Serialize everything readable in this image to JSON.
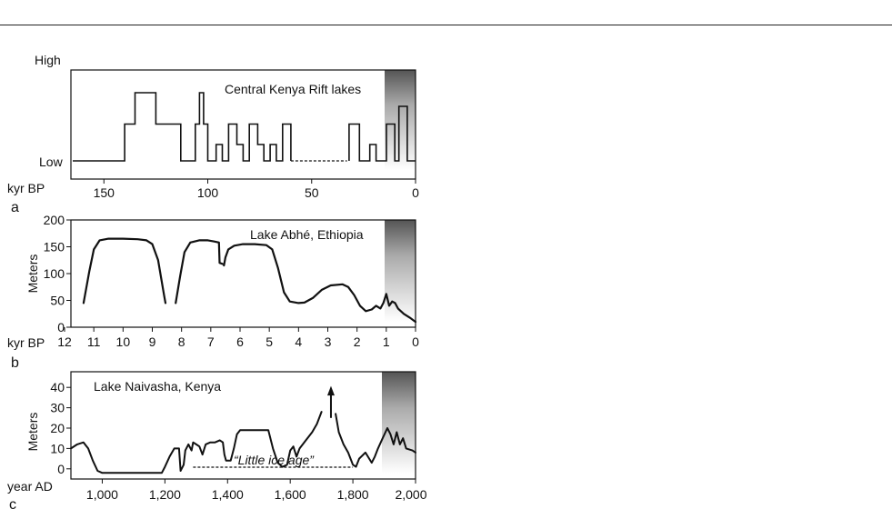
{
  "chart_data": [
    {
      "type": "line",
      "panel_letter": "a",
      "title": "Central Kenya Rift lakes",
      "xlabel": "kyr BP",
      "ylabel": "",
      "y_level_labels": [
        "High",
        "Low"
      ],
      "xlim": [
        165,
        0
      ],
      "ylim": [
        0,
        1
      ],
      "x_ticks": [
        150,
        100,
        50,
        0
      ],
      "grid": false,
      "series": [
        {
          "step": true,
          "points": [
            [
              165,
              0
            ],
            [
              140,
              0
            ],
            [
              140,
              0.54
            ],
            [
              135,
              0.54
            ],
            [
              135,
              1
            ],
            [
              125,
              1
            ],
            [
              125,
              0.54
            ],
            [
              113,
              0.54
            ],
            [
              113,
              0
            ],
            [
              106,
              0
            ],
            [
              106,
              0.54
            ],
            [
              104,
              0.54
            ],
            [
              104,
              1
            ],
            [
              102,
              1
            ],
            [
              102,
              0.54
            ],
            [
              100,
              0.54
            ],
            [
              100,
              0
            ],
            [
              96,
              0
            ],
            [
              96,
              0.24
            ],
            [
              93,
              0.24
            ],
            [
              93,
              0
            ],
            [
              90,
              0
            ],
            [
              90,
              0.54
            ],
            [
              86,
              0.54
            ],
            [
              86,
              0.24
            ],
            [
              83,
              0.24
            ],
            [
              83,
              0
            ],
            [
              80,
              0
            ],
            [
              80,
              0.54
            ],
            [
              76,
              0.54
            ],
            [
              76,
              0.24
            ],
            [
              73,
              0.24
            ],
            [
              73,
              0
            ],
            [
              70,
              0
            ],
            [
              70,
              0.24
            ],
            [
              67,
              0.24
            ],
            [
              67,
              0
            ],
            [
              64,
              0
            ],
            [
              64,
              0.54
            ],
            [
              60,
              0.54
            ],
            [
              60,
              0
            ]
          ]
        },
        {
          "step": true,
          "points": [
            [
              32,
              0
            ],
            [
              32,
              0.54
            ],
            [
              27,
              0.54
            ],
            [
              27,
              0
            ],
            [
              22,
              0
            ],
            [
              22,
              0.24
            ],
            [
              19,
              0.24
            ],
            [
              19,
              0
            ],
            [
              14,
              0
            ],
            [
              14,
              0.54
            ],
            [
              10,
              0.54
            ],
            [
              10,
              0
            ],
            [
              8,
              0
            ],
            [
              8,
              0.8
            ],
            [
              4,
              0.8
            ],
            [
              4,
              0
            ],
            [
              0,
              0
            ]
          ]
        }
      ],
      "dashed_segment": [
        60,
        33,
        0
      ]
    },
    {
      "type": "line",
      "panel_letter": "b",
      "title": "Lake Abhé, Ethiopia",
      "xlabel": "kyr BP",
      "ylabel": "Meters",
      "xlim": [
        12,
        0
      ],
      "ylim": [
        0,
        200
      ],
      "x_ticks": [
        12,
        11,
        10,
        9,
        8,
        7,
        6,
        5,
        4,
        3,
        2,
        1,
        0
      ],
      "y_ticks": [
        0,
        50,
        100,
        150,
        200
      ],
      "grid": false,
      "series": [
        {
          "points": [
            [
              11.35,
              45
            ],
            [
              11.15,
              105
            ],
            [
              11.0,
              145
            ],
            [
              10.8,
              162
            ],
            [
              10.5,
              165
            ],
            [
              10.0,
              165
            ],
            [
              9.5,
              164
            ],
            [
              9.2,
              162
            ],
            [
              9.0,
              155
            ],
            [
              8.8,
              125
            ],
            [
              8.6,
              60
            ],
            [
              8.55,
              45
            ]
          ]
        },
        {
          "points": [
            [
              8.2,
              45
            ],
            [
              8.05,
              95
            ],
            [
              7.9,
              140
            ],
            [
              7.7,
              158
            ],
            [
              7.4,
              162
            ],
            [
              7.1,
              162
            ],
            [
              6.9,
              160
            ],
            [
              6.72,
              158
            ],
            [
              6.7,
              120
            ],
            [
              6.6,
              118
            ]
          ]
        },
        {
          "points": [
            [
              6.55,
              115
            ],
            [
              6.5,
              130
            ],
            [
              6.4,
              145
            ],
            [
              6.2,
              152
            ],
            [
              5.9,
              155
            ],
            [
              5.5,
              155
            ],
            [
              5.1,
              153
            ],
            [
              4.9,
              145
            ],
            [
              4.7,
              110
            ],
            [
              4.5,
              65
            ],
            [
              4.3,
              48
            ],
            [
              4.0,
              45
            ],
            [
              3.8,
              46
            ],
            [
              3.5,
              55
            ],
            [
              3.2,
              70
            ],
            [
              2.9,
              78
            ],
            [
              2.5,
              80
            ],
            [
              2.3,
              75
            ],
            [
              2.1,
              60
            ],
            [
              1.9,
              40
            ],
            [
              1.7,
              30
            ],
            [
              1.5,
              33
            ],
            [
              1.35,
              40
            ],
            [
              1.2,
              35
            ],
            [
              1.1,
              45
            ],
            [
              1.0,
              62
            ],
            [
              0.9,
              40
            ],
            [
              0.8,
              48
            ],
            [
              0.7,
              45
            ],
            [
              0.6,
              35
            ],
            [
              0.4,
              25
            ],
            [
              0.2,
              18
            ],
            [
              0.0,
              10
            ]
          ]
        }
      ]
    },
    {
      "type": "line",
      "panel_letter": "c",
      "title": "Lake Naivasha, Kenya",
      "xlabel": "year AD",
      "ylabel": "Meters",
      "xlim": [
        900,
        2000
      ],
      "ylim": [
        -5,
        45
      ],
      "x_ticks": [
        1000,
        1200,
        1400,
        1600,
        1800,
        2000
      ],
      "x_tick_labels": [
        "1,000",
        "1,200",
        "1,400",
        "1,600",
        "1,800",
        "2,000"
      ],
      "y_ticks": [
        0,
        10,
        20,
        30,
        40
      ],
      "grid": false,
      "annotation": "“Little ice age”",
      "annotation_range": [
        1290,
        1800
      ],
      "arrow_year": 1730,
      "series": [
        {
          "points": [
            [
              900,
              10
            ],
            [
              920,
              12
            ],
            [
              940,
              13
            ],
            [
              955,
              10
            ],
            [
              970,
              4
            ],
            [
              985,
              -1
            ],
            [
              1000,
              -2
            ],
            [
              1190,
              -2
            ],
            [
              1200,
              1
            ],
            [
              1215,
              6
            ],
            [
              1230,
              10
            ],
            [
              1245,
              10
            ],
            [
              1250,
              -1
            ],
            [
              1260,
              2
            ],
            [
              1265,
              9
            ],
            [
              1275,
              12
            ],
            [
              1285,
              9
            ],
            [
              1290,
              13
            ],
            [
              1300,
              12
            ],
            [
              1310,
              11
            ],
            [
              1320,
              7
            ],
            [
              1330,
              12
            ],
            [
              1345,
              13
            ],
            [
              1360,
              13
            ],
            [
              1375,
              14
            ],
            [
              1385,
              13
            ],
            [
              1390,
              7
            ],
            [
              1395,
              4
            ],
            [
              1410,
              4
            ],
            [
              1420,
              10
            ],
            [
              1430,
              17
            ],
            [
              1440,
              19
            ],
            [
              1460,
              19
            ],
            [
              1500,
              19
            ],
            [
              1520,
              19
            ],
            [
              1530,
              19
            ],
            [
              1545,
              10
            ],
            [
              1560,
              3
            ],
            [
              1575,
              1
            ],
            [
              1590,
              2
            ],
            [
              1600,
              9
            ],
            [
              1610,
              11
            ],
            [
              1620,
              6
            ],
            [
              1630,
              10
            ],
            [
              1650,
              14
            ],
            [
              1670,
              18
            ],
            [
              1685,
              22
            ],
            [
              1700,
              28
            ]
          ]
        },
        {
          "points": [
            [
              1745,
              27
            ],
            [
              1755,
              18
            ],
            [
              1770,
              12
            ],
            [
              1785,
              8
            ],
            [
              1800,
              2
            ],
            [
              1810,
              1
            ],
            [
              1820,
              5
            ],
            [
              1840,
              8
            ],
            [
              1860,
              3
            ],
            [
              1870,
              6
            ],
            [
              1880,
              10
            ],
            [
              1895,
              15
            ],
            [
              1910,
              20
            ],
            [
              1920,
              17
            ],
            [
              1930,
              12
            ],
            [
              1940,
              18
            ],
            [
              1950,
              12
            ],
            [
              1960,
              15
            ],
            [
              1970,
              10
            ],
            [
              1990,
              9
            ],
            [
              2000,
              8
            ]
          ]
        }
      ]
    }
  ]
}
